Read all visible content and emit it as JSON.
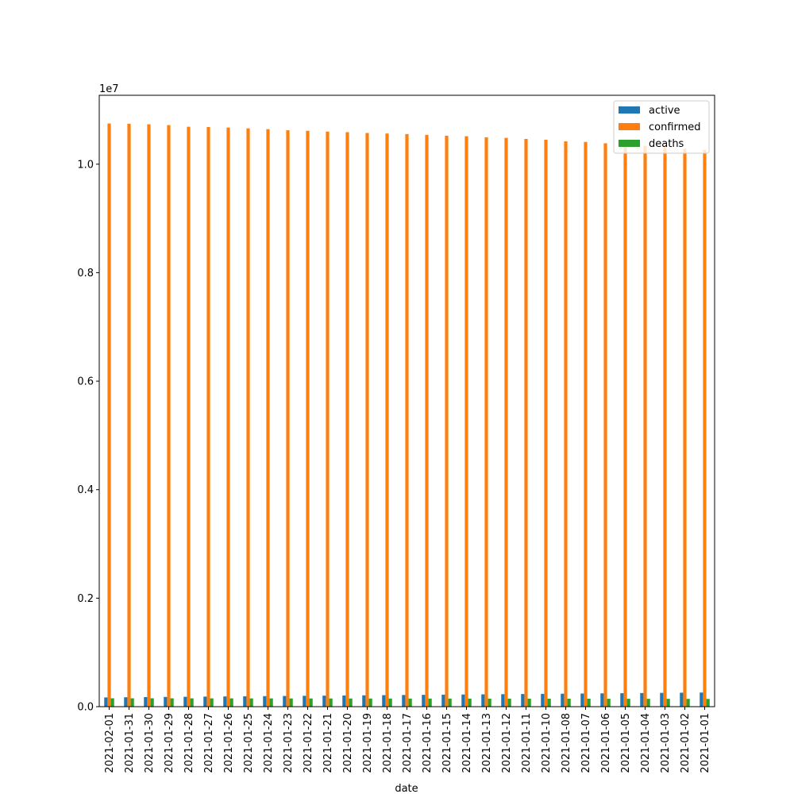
{
  "chart_data": {
    "type": "bar",
    "title": "",
    "xlabel": "date",
    "ylabel": "",
    "y_offset_label": "1e7",
    "y_scale": 10000000,
    "ylim": [
      0,
      11270000
    ],
    "yticks": [
      0.0,
      0.2,
      0.4,
      0.6,
      0.8,
      1.0
    ],
    "grid": false,
    "legend_position": "top-right",
    "categories": [
      "2021-02-01",
      "2021-01-31",
      "2021-01-30",
      "2021-01-29",
      "2021-01-28",
      "2021-01-27",
      "2021-01-26",
      "2021-01-25",
      "2021-01-24",
      "2021-01-23",
      "2021-01-22",
      "2021-01-21",
      "2021-01-20",
      "2021-01-19",
      "2021-01-18",
      "2021-01-17",
      "2021-01-16",
      "2021-01-15",
      "2021-01-14",
      "2021-01-13",
      "2021-01-12",
      "2021-01-11",
      "2021-01-10",
      "2021-01-08",
      "2021-01-07",
      "2021-01-06",
      "2021-01-05",
      "2021-01-04",
      "2021-01-03",
      "2021-01-02",
      "2021-01-01"
    ],
    "series": [
      {
        "name": "active",
        "color": "#1f77b4",
        "values": [
          170000,
          173000,
          176000,
          179000,
          182000,
          185000,
          188000,
          191000,
          194000,
          197000,
          200000,
          203000,
          206000,
          209000,
          212000,
          215000,
          218000,
          221000,
          224000,
          227000,
          230000,
          233000,
          236000,
          239000,
          242000,
          245000,
          248000,
          251000,
          254000,
          257000,
          260000
        ]
      },
      {
        "name": "confirmed",
        "color": "#ff7f0e",
        "values": [
          10750000,
          10745000,
          10735000,
          10720000,
          10690000,
          10685000,
          10675000,
          10660000,
          10645000,
          10625000,
          10615000,
          10600000,
          10590000,
          10575000,
          10565000,
          10555000,
          10540000,
          10525000,
          10515000,
          10495000,
          10485000,
          10465000,
          10450000,
          10420000,
          10410000,
          10385000,
          10360000,
          10340000,
          10315000,
          10285000,
          10265000
        ]
      },
      {
        "name": "deaths",
        "color": "#2ca02c",
        "values": [
          154000,
          154000,
          154000,
          153500,
          153000,
          153000,
          152500,
          152000,
          152000,
          151500,
          151000,
          151000,
          150500,
          150000,
          150000,
          149500,
          149000,
          149000,
          148500,
          148000,
          148000,
          147500,
          147000,
          146500,
          146000,
          145500,
          145000,
          144500,
          144000,
          143500,
          143000
        ]
      }
    ]
  }
}
